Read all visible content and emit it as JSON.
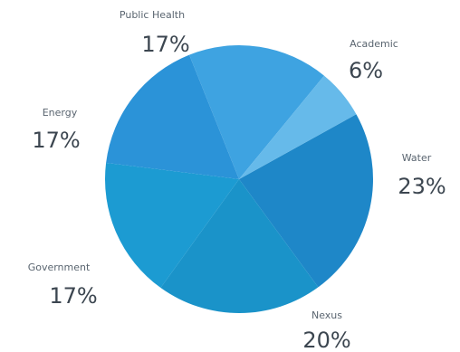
{
  "chart_data": {
    "type": "pie",
    "slices": [
      {
        "label": "Water",
        "value": 23,
        "value_label": "23%",
        "color": "#1e87c8"
      },
      {
        "label": "Nexus",
        "value": 20,
        "value_label": "20%",
        "color": "#1a93c9"
      },
      {
        "label": "Government",
        "value": 17,
        "value_label": "17%",
        "color": "#1c9bd2"
      },
      {
        "label": "Energy",
        "value": 17,
        "value_label": "17%",
        "color": "#2b93d8"
      },
      {
        "label": "Public Health",
        "value": 17,
        "value_label": "17%",
        "color": "#3ea3e1"
      },
      {
        "label": "Academic",
        "value": 6,
        "value_label": "6%",
        "color": "#66baea"
      }
    ],
    "legend": "none"
  }
}
